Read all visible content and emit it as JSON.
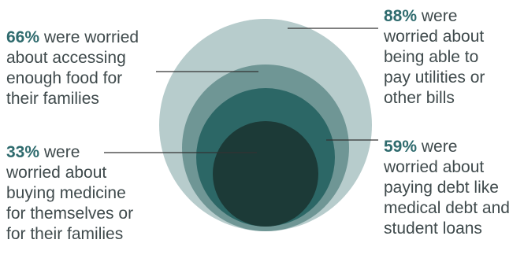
{
  "colors": {
    "circle_outer": "#b7cccc",
    "circle_second": "#6f9695",
    "circle_third": "#2c6766",
    "circle_inner": "#1c3a37",
    "leader": "#333333",
    "percent": "#2f6b6e",
    "text": "#3f4a4c"
  },
  "items": [
    {
      "percent": "88%",
      "lines": [
        " were",
        "worried about",
        "being able to",
        "pay utilities or",
        "other bills"
      ]
    },
    {
      "percent": "66%",
      "lines": [
        " were worried",
        "about accessing",
        "enough food for",
        "their families"
      ]
    },
    {
      "percent": "59%",
      "lines": [
        " were",
        "worried about",
        "paying debt like",
        "medical debt and",
        "student loans"
      ]
    },
    {
      "percent": "33%",
      "lines": [
        " were",
        "worried about",
        "buying medicine",
        "for themselves or",
        "for their families"
      ]
    }
  ]
}
